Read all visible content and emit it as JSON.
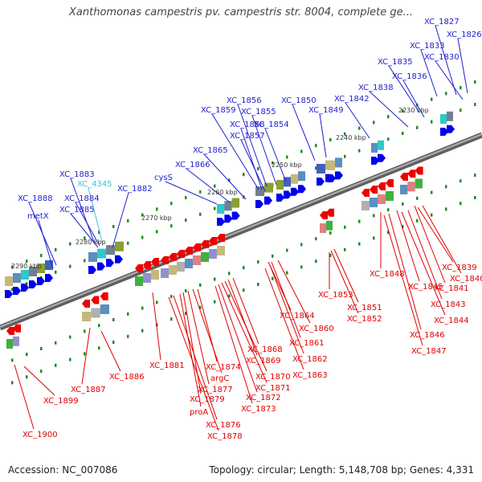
{
  "title": "Xanthomonas campestris pv. campestris str. 8004, complete ge...",
  "accession": "Accession: NC_007086",
  "topology": "Topology: circular; Length: 5,148,708 bp; Genes: 4,331",
  "colors": {
    "forward_label": "#1f1fcf",
    "reverse_label": "#e00000",
    "highlight_label": "#40c0e0",
    "forward_arrow": "#0000ee",
    "reverse_arrow": "#ee0000",
    "backbone": "#777777",
    "tick": "#228b22"
  },
  "tick_labels": [
    "2230 kbp",
    "2240 kbp",
    "2250 kbp",
    "2260 kbp",
    "2270 kbp",
    "2280 kbp",
    "2290 kbp"
  ],
  "forward_labels": [
    "XC_1827",
    "XC_1826",
    "XC_1833",
    "XC_1830",
    "XC_1835",
    "XC_1836",
    "XC_1838",
    "XC_1842",
    "XC_1850",
    "XC_1849",
    "XC_1856",
    "XC_1859",
    "XC_1855",
    "XC_1858",
    "XC_1854",
    "XC_1857",
    "XC_1865",
    "XC_1866",
    "cysS",
    "XC_1883",
    "XC_4345",
    "XC_1882",
    "XC_1884",
    "XC_1888",
    "XC_1885",
    "metX"
  ],
  "reverse_labels": [
    "XC_1839",
    "XC_1840",
    "XC_1841",
    "XC_1848",
    "XC_1845",
    "XC_1843",
    "XC_1844",
    "XC_1846",
    "XC_1847",
    "XC_1853",
    "XC_1851",
    "XC_1852",
    "XC_1864",
    "XC_1860",
    "XC_1861",
    "XC_1862",
    "XC_1863",
    "XC_1868",
    "XC_1869",
    "XC_1870",
    "XC_1871",
    "XC_1872",
    "XC_1873",
    "XC_1874",
    "argC",
    "XC_1877",
    "XC_1879",
    "proA",
    "XC_1876",
    "XC_1878",
    "XC_1881",
    "XC_1886",
    "XC_1887",
    "XC_1899",
    "XC_1900"
  ]
}
